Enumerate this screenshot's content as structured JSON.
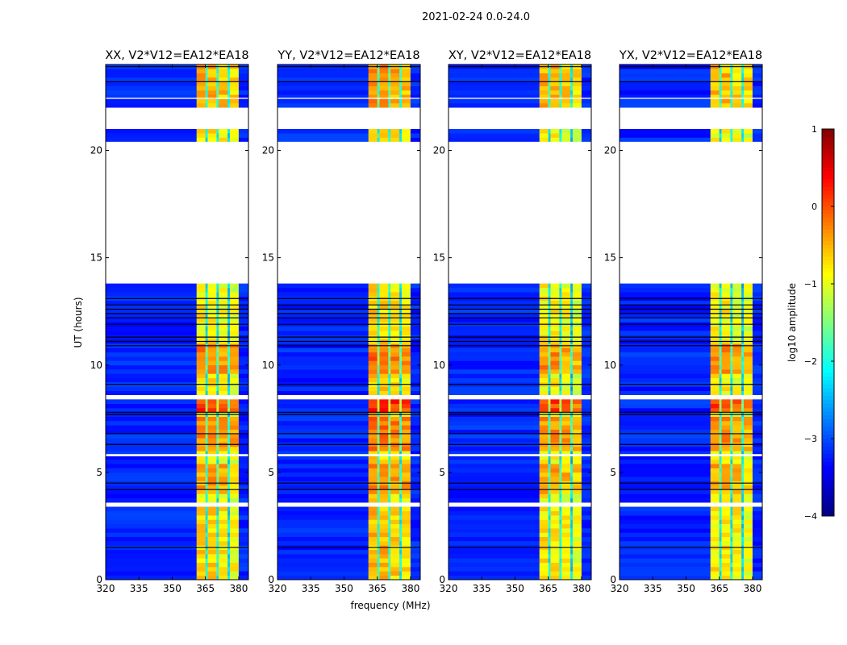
{
  "suptitle": "2021-02-24 0.0-24.0",
  "chart_data": {
    "type": "heatmap",
    "xlabel": "frequency (MHz)",
    "ylabel": "UT (hours)",
    "xlim": [
      320,
      384.4
    ],
    "ylim": [
      0,
      24
    ],
    "xticks": [
      "320",
      "335",
      "350",
      "365",
      "380"
    ],
    "xtick_values": [
      320,
      335,
      350,
      365,
      380
    ],
    "yticks": [
      "0",
      "5",
      "10",
      "15",
      "20"
    ],
    "ytick_values": [
      0,
      5,
      10,
      15,
      20
    ],
    "panels": [
      {
        "title": "XX, V2*V12=EA12*EA18",
        "seed": 1,
        "band_boost": 0.0
      },
      {
        "title": "YY, V2*V12=EA12*EA18",
        "seed": 2,
        "band_boost": 0.15
      },
      {
        "title": "XY, V2*V12=EA12*EA18",
        "seed": 3,
        "band_boost": -0.05
      },
      {
        "title": "YX, V2*V12=EA12*EA18",
        "seed": 4,
        "band_boost": -0.05
      }
    ],
    "frequency_segments_log10_amplitude": [
      [
        320,
        361,
        -3.2
      ],
      [
        361,
        365,
        -0.8
      ],
      [
        365,
        366,
        -2.2
      ],
      [
        366,
        370,
        -0.8
      ],
      [
        370,
        371,
        -2.2
      ],
      [
        371,
        375,
        -0.9
      ],
      [
        375,
        376,
        -2.4
      ],
      [
        376,
        380,
        -1.0
      ],
      [
        380,
        384.4,
        -3.2
      ]
    ],
    "flagged_time_ranges_hours": [
      [
        13.8,
        20.4
      ],
      [
        21.0,
        21.9
      ],
      [
        3.4,
        3.55
      ],
      [
        5.75,
        5.85
      ],
      [
        8.5,
        8.6
      ],
      [
        22.4,
        22.45
      ]
    ],
    "dark_time_lines_hours": [
      1.5,
      4.2,
      4.5,
      6.3,
      6.8,
      7.7,
      7.8,
      9.1,
      10.9,
      11.1,
      11.3,
      11.9,
      12.2,
      12.4,
      12.6,
      12.8,
      13.1,
      23.2,
      23.9
    ],
    "time_boost_ranges_hours": [
      [
        7.8,
        8.5,
        0.9
      ],
      [
        9.5,
        11.0,
        0.5
      ],
      [
        4.0,
        5.5,
        0.4
      ],
      [
        6.0,
        7.6,
        0.5
      ],
      [
        22.0,
        24.0,
        0.3
      ],
      [
        0,
        3.4,
        0.1
      ]
    ],
    "colorbar": {
      "label": "log10 amplitude",
      "range": [
        -4,
        1
      ],
      "ticks": [
        "1",
        "0",
        "−1",
        "−2",
        "−3",
        "−4"
      ],
      "tick_values": [
        1,
        0,
        -1,
        -2,
        -3,
        -4
      ],
      "colormap": "jet"
    }
  }
}
